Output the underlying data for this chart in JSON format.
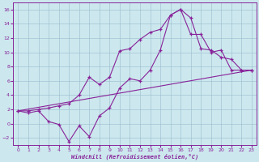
{
  "bg_color": "#cce8ee",
  "grid_color": "#99bbcc",
  "line_color": "#882299",
  "xlabel": "Windchill (Refroidissement éolien,°C)",
  "xlim_min": -0.5,
  "xlim_max": 23.5,
  "ylim_min": -3.0,
  "ylim_max": 17.0,
  "xticks": [
    0,
    1,
    2,
    3,
    4,
    5,
    6,
    7,
    8,
    9,
    10,
    11,
    12,
    13,
    14,
    15,
    16,
    17,
    18,
    19,
    20,
    21,
    22,
    23
  ],
  "yticks": [
    -2,
    0,
    2,
    4,
    6,
    8,
    10,
    12,
    14,
    16
  ],
  "line1_x": [
    0,
    1,
    2,
    3,
    4,
    5,
    6,
    7,
    8,
    9,
    10,
    11,
    12,
    13,
    14,
    15,
    16,
    17,
    18,
    19,
    20,
    21,
    22,
    23
  ],
  "line1_y": [
    1.8,
    1.5,
    1.8,
    0.3,
    -0.1,
    -2.5,
    -0.3,
    -1.8,
    1.1,
    2.2,
    5.0,
    6.3,
    6.0,
    7.5,
    10.3,
    15.2,
    16.0,
    14.8,
    10.5,
    10.3,
    9.3,
    9.0,
    7.5,
    7.5
  ],
  "line2_x": [
    0,
    1,
    2,
    3,
    4,
    5,
    6,
    7,
    8,
    9,
    10,
    11,
    12,
    13,
    14,
    15,
    16,
    17,
    18,
    19,
    20,
    21,
    22,
    23
  ],
  "line2_y": [
    1.8,
    1.8,
    2.0,
    2.2,
    2.5,
    2.8,
    4.0,
    6.5,
    5.5,
    6.5,
    10.2,
    10.5,
    11.8,
    12.8,
    13.2,
    15.2,
    16.0,
    12.5,
    12.5,
    10.0,
    10.3,
    7.5,
    7.5,
    7.5
  ],
  "line3_x": [
    0,
    23
  ],
  "line3_y": [
    1.8,
    7.5
  ]
}
